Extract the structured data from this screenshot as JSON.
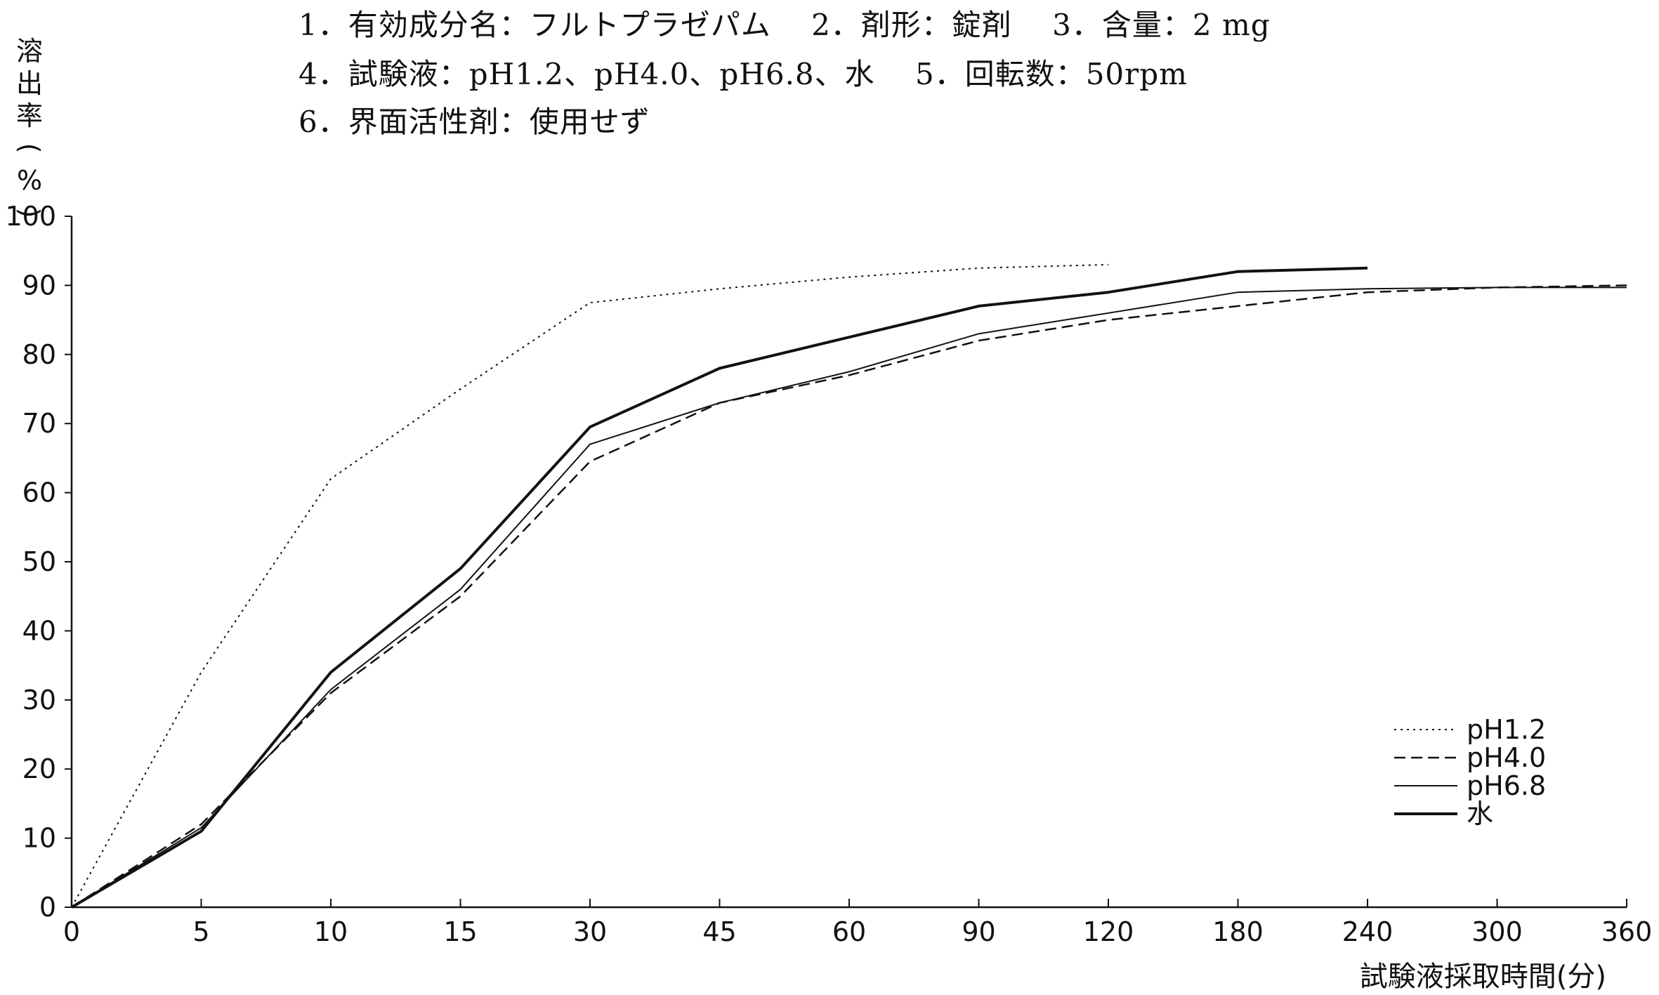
{
  "header": {
    "line1": "1．有効成分名：フルトプラゼパム　 2．剤形：錠剤　 3．含量：2 mg",
    "line2": "4．試験液：pH1.2、pH4.0、pH6.8、水　 5．回転数：50rpm",
    "line3": "6．界面活性剤：使用せず"
  },
  "chart_data": {
    "type": "line",
    "categories": [
      "0",
      "5",
      "10",
      "15",
      "30",
      "45",
      "60",
      "90",
      "120",
      "180",
      "240",
      "300",
      "360"
    ],
    "ylabel": "溶出率(%)",
    "ylabel_chars": [
      "溶",
      "出",
      "率",
      "(",
      "%",
      ")"
    ],
    "xlabel": "試験液採取時間(分)",
    "ylim": [
      0,
      100
    ],
    "yticks": [
      0,
      10,
      20,
      30,
      40,
      50,
      60,
      70,
      80,
      90,
      100
    ],
    "grid": false,
    "legend_position": "bottom-right",
    "series": [
      {
        "name": "pH1.2",
        "style": "dotted",
        "x": [
          "0",
          "5",
          "10",
          "15",
          "30",
          "45",
          "60",
          "90",
          "120"
        ],
        "values": [
          0,
          34,
          62,
          75,
          87.5,
          89.5,
          91.2,
          92.5,
          93
        ]
      },
      {
        "name": "pH4.0",
        "style": "dashed",
        "x": [
          "0",
          "5",
          "10",
          "15",
          "30",
          "45",
          "60",
          "90",
          "120",
          "180",
          "240",
          "300",
          "360"
        ],
        "values": [
          0,
          12,
          31,
          45,
          64.5,
          73,
          77,
          82,
          85,
          87,
          89,
          89.7,
          90
        ]
      },
      {
        "name": "pH6.8",
        "style": "thin",
        "x": [
          "0",
          "5",
          "10",
          "15",
          "30",
          "45",
          "60",
          "90",
          "120",
          "180",
          "240",
          "300",
          "360"
        ],
        "values": [
          0,
          11.5,
          31.5,
          46,
          67,
          73,
          77.5,
          83,
          86,
          89,
          89.5,
          89.7,
          89.7
        ]
      },
      {
        "name": "水",
        "style": "thick",
        "x": [
          "0",
          "5",
          "10",
          "15",
          "30",
          "45",
          "60",
          "90",
          "120",
          "180",
          "240"
        ],
        "values": [
          0,
          11,
          34,
          49,
          69.5,
          78,
          82.5,
          87,
          89,
          92,
          92.5
        ]
      }
    ]
  }
}
